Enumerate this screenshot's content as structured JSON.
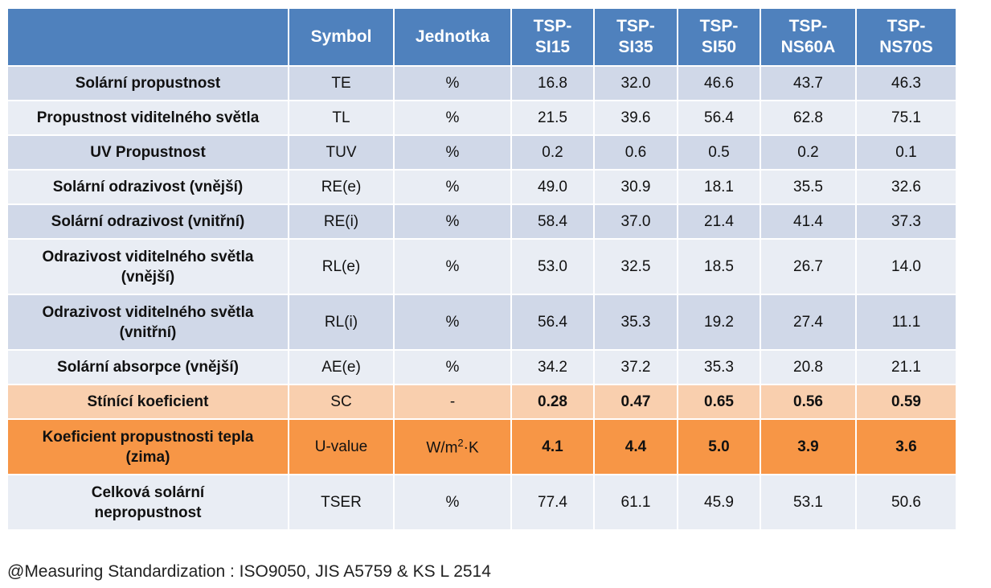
{
  "headers": [
    "",
    "Symbol",
    "Jednotka",
    "TSP-\nSI15",
    "TSP-\nSI35",
    "TSP-\nSI50",
    "TSP-\nNS60A",
    "TSP-\nNS70S"
  ],
  "rows": [
    {
      "label": "Solární propustnost",
      "symbol": "TE",
      "unit": "%",
      "values": [
        "16.8",
        "32.0",
        "46.6",
        "43.7",
        "46.3"
      ]
    },
    {
      "label": "Propustnost viditelného světla",
      "symbol": "TL",
      "unit": "%",
      "values": [
        "21.5",
        "39.6",
        "56.4",
        "62.8",
        "75.1"
      ]
    },
    {
      "label": "UV Propustnost",
      "symbol": "TUV",
      "unit": "%",
      "values": [
        "0.2",
        "0.6",
        "0.5",
        "0.2",
        "0.1"
      ]
    },
    {
      "label": "Solární odrazivost (vnější)",
      "symbol": "RE(e)",
      "unit": "%",
      "values": [
        "49.0",
        "30.9",
        "18.1",
        "35.5",
        "32.6"
      ]
    },
    {
      "label": "Solární odrazivost (vnitřní)",
      "symbol": "RE(i)",
      "unit": "%",
      "values": [
        "58.4",
        "37.0",
        "21.4",
        "41.4",
        "37.3"
      ]
    },
    {
      "label": "Odrazivost viditelného světla\n(vnější)",
      "symbol": "RL(e)",
      "unit": "%",
      "values": [
        "53.0",
        "32.5",
        "18.5",
        "26.7",
        "14.0"
      ]
    },
    {
      "label": "Odrazivost viditelného světla\n(vnitřní)",
      "symbol": "RL(i)",
      "unit": "%",
      "values": [
        "56.4",
        "35.3",
        "19.2",
        "27.4",
        "11.1"
      ]
    },
    {
      "label": "Solární absorpce (vnější)",
      "symbol": "AE(e)",
      "unit": "%",
      "values": [
        "34.2",
        "37.2",
        "35.3",
        "20.8",
        "21.1"
      ]
    },
    {
      "label": "Stínící koeficient",
      "symbol": "SC",
      "unit": "-",
      "values": [
        "0.28",
        "0.47",
        "0.65",
        "0.56",
        "0.59"
      ]
    },
    {
      "label": "Koeficient propustnosti tepla\n(zima)",
      "symbol": "U-value",
      "unit": "W/m2·K",
      "values": [
        "4.1",
        "4.4",
        "5.0",
        "3.9",
        "3.6"
      ]
    },
    {
      "label": "Celková solární\nnepropustnost",
      "symbol": "TSER",
      "unit": "%",
      "values": [
        "77.4",
        "61.1",
        "45.9",
        "53.1",
        "50.6"
      ]
    }
  ],
  "footnote": "@Measuring Standardization : ISO9050, JIS A5759 & KS L 2514",
  "colors": {
    "header": "#4f81bd",
    "row_dark": "#d0d8e8",
    "row_light": "#e9edf4",
    "row_sc": "#f9cfae",
    "row_uvalue": "#f79646"
  }
}
